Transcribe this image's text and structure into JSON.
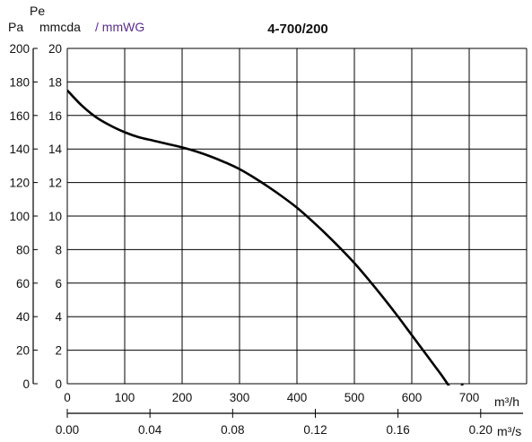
{
  "chart_data": {
    "type": "line",
    "title": "4-700/200",
    "y_axis_label": "Pe",
    "y_unit_pa": "Pa",
    "y_unit_mmcda": "mmcda",
    "y_unit_mmwg": "/ mmWG",
    "x_unit_m3h": "m³/h",
    "x_unit_m3s": "m³/s",
    "x_range_m3h": [
      0,
      800
    ],
    "y_range_pa": [
      0,
      200
    ],
    "y_range_mmcda": [
      0,
      20
    ],
    "x_ticks_m3h": [
      0,
      100,
      200,
      300,
      400,
      500,
      600,
      700
    ],
    "y_ticks_pa": [
      0,
      20,
      40,
      60,
      80,
      100,
      120,
      140,
      160,
      180,
      200
    ],
    "y_ticks_mmcda": [
      0,
      2,
      4,
      6,
      8,
      10,
      12,
      14,
      16,
      18,
      20
    ],
    "x_ticks_m3s": [
      "0.00",
      "0.04",
      "0.08",
      "0.12",
      "0.16",
      "0.20"
    ],
    "grid": true,
    "series": [
      {
        "x": [
          0,
          25,
          50,
          75,
          100,
          125,
          150,
          175,
          200,
          225,
          250,
          275,
          300,
          325,
          350,
          375,
          400,
          425,
          450,
          475,
          500,
          525,
          550,
          575,
          600,
          625,
          650,
          675,
          689
        ],
        "y": [
          175,
          166,
          159,
          154,
          150,
          147,
          145,
          143,
          141,
          138.5,
          135.5,
          132,
          128,
          123,
          117.5,
          111.5,
          105,
          97.5,
          89.5,
          81,
          72,
          62,
          51.5,
          40.5,
          29,
          17.5,
          6,
          -5,
          0
        ],
        "color": "#000000"
      }
    ]
  }
}
